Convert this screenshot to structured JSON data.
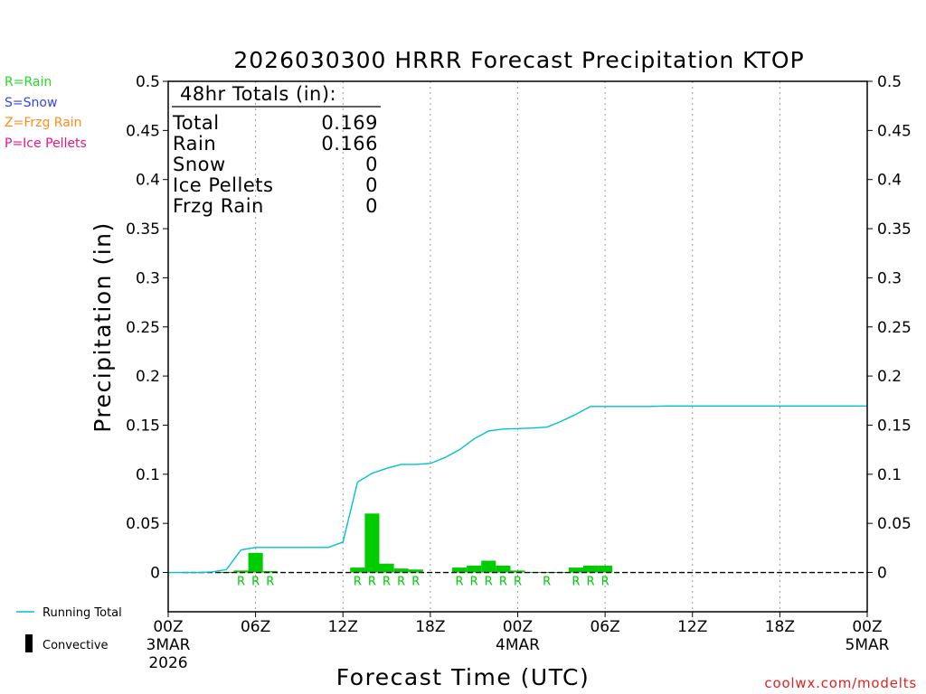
{
  "chart_data": {
    "type": "bar",
    "title": "2026030300 HRRR Forecast Precipitation KTOP",
    "xlabel": "Forecast Time (UTC)",
    "ylabel": "Precipitation (in)",
    "ylim": [
      -0.04,
      0.5
    ],
    "xlim_hours": [
      0,
      48
    ],
    "yticks": [
      {
        "value": 0.5,
        "label": "0.5"
      },
      {
        "value": 0.45,
        "label": "0.45"
      },
      {
        "value": 0.4,
        "label": "0.4"
      },
      {
        "value": 0.35,
        "label": "0.35"
      },
      {
        "value": 0.3,
        "label": "0.3"
      },
      {
        "value": 0.25,
        "label": "0.25"
      },
      {
        "value": 0.2,
        "label": "0.2"
      },
      {
        "value": 0.15,
        "label": "0.15"
      },
      {
        "value": 0.1,
        "label": "0.1"
      },
      {
        "value": 0.05,
        "label": "0.05"
      },
      {
        "value": 0,
        "label": "0"
      }
    ],
    "xticks": [
      {
        "hour": 0,
        "label": "00Z",
        "date": "3MAR",
        "year": "2026"
      },
      {
        "hour": 6,
        "label": "06Z"
      },
      {
        "hour": 12,
        "label": "12Z"
      },
      {
        "hour": 18,
        "label": "18Z"
      },
      {
        "hour": 24,
        "label": "00Z",
        "date": "4MAR"
      },
      {
        "hour": 30,
        "label": "06Z"
      },
      {
        "hour": 36,
        "label": "12Z"
      },
      {
        "hour": 42,
        "label": "18Z"
      },
      {
        "hour": 48,
        "label": "00Z",
        "date": "5MAR"
      }
    ],
    "series": [
      {
        "name": "Hourly precipitation (rain)",
        "kind": "bar",
        "color": "#00cc00",
        "hours": [
          4,
          5,
          6,
          7,
          8,
          9,
          10,
          11,
          12,
          13,
          14,
          15,
          16,
          17,
          18,
          19,
          20,
          21,
          22,
          23,
          24,
          25,
          26,
          27,
          28,
          29,
          30
        ],
        "values": [
          0.0005,
          0.002,
          0.02,
          0.0015,
          0,
          0,
          0,
          0,
          0,
          0.005,
          0.06,
          0.009,
          0.004,
          0.003,
          0,
          0,
          0.005,
          0.007,
          0.012,
          0.007,
          0.002,
          0.0005,
          0.0005,
          0.0005,
          0.005,
          0.007,
          0.007
        ]
      },
      {
        "name": "Running Total",
        "kind": "line",
        "color": "#00c0d0",
        "hours": [
          0,
          1,
          2,
          3,
          4,
          5,
          6,
          7,
          8,
          9,
          10,
          11,
          12,
          13,
          14,
          15,
          16,
          17,
          18,
          19,
          20,
          21,
          22,
          23,
          24,
          25,
          26,
          27,
          28,
          29,
          30,
          31,
          32,
          33,
          34,
          35,
          36,
          37,
          38,
          39,
          40,
          41,
          42,
          43,
          44,
          45,
          46,
          47,
          48
        ],
        "values": [
          0,
          0,
          0,
          0.0005,
          0.003,
          0.023,
          0.0255,
          0.0255,
          0.0255,
          0.0255,
          0.0255,
          0.0255,
          0.031,
          0.092,
          0.101,
          0.106,
          0.11,
          0.11,
          0.111,
          0.117,
          0.125,
          0.136,
          0.144,
          0.146,
          0.1465,
          0.147,
          0.148,
          0.154,
          0.161,
          0.169,
          0.169,
          0.169,
          0.169,
          0.169,
          0.1695,
          0.1695,
          0.1695,
          0.1695,
          0.1695,
          0.1695,
          0.1695,
          0.1695,
          0.1695,
          0.1695,
          0.1695,
          0.1695,
          0.1695,
          0.1695,
          0.1695
        ]
      }
    ],
    "ptype_markers": {
      "color": "#00cc00",
      "hours": [
        5,
        6,
        7,
        13,
        14,
        15,
        16,
        17,
        20,
        21,
        22,
        23,
        24,
        26,
        28,
        29,
        30
      ],
      "label": "R"
    },
    "totals_box": {
      "heading": "48hr Totals (in):",
      "rows": [
        {
          "label": "Total",
          "value": "0.169"
        },
        {
          "label": "Rain",
          "value": "0.166"
        },
        {
          "label": "Snow",
          "value": "0"
        },
        {
          "label": "Ice Pellets",
          "value": "0"
        },
        {
          "label": "Frzg Rain",
          "value": "0"
        }
      ]
    },
    "ptype_legend": [
      {
        "text": "R=Rain",
        "color": "#22dd22"
      },
      {
        "text": "S=Snow",
        "color": "#3344ee"
      },
      {
        "text": "Z=Frzg Rain",
        "color": "#ff8c1a"
      },
      {
        "text": "P=Ice Pellets",
        "color": "#ee1188"
      }
    ],
    "bottom_legend": [
      {
        "text": "Running Total",
        "color": "#00c0d0",
        "symbol": "line"
      },
      {
        "text": "Convective",
        "color": "#000000",
        "symbol": "bar"
      }
    ],
    "credit": "coolwx.com/modelts"
  }
}
